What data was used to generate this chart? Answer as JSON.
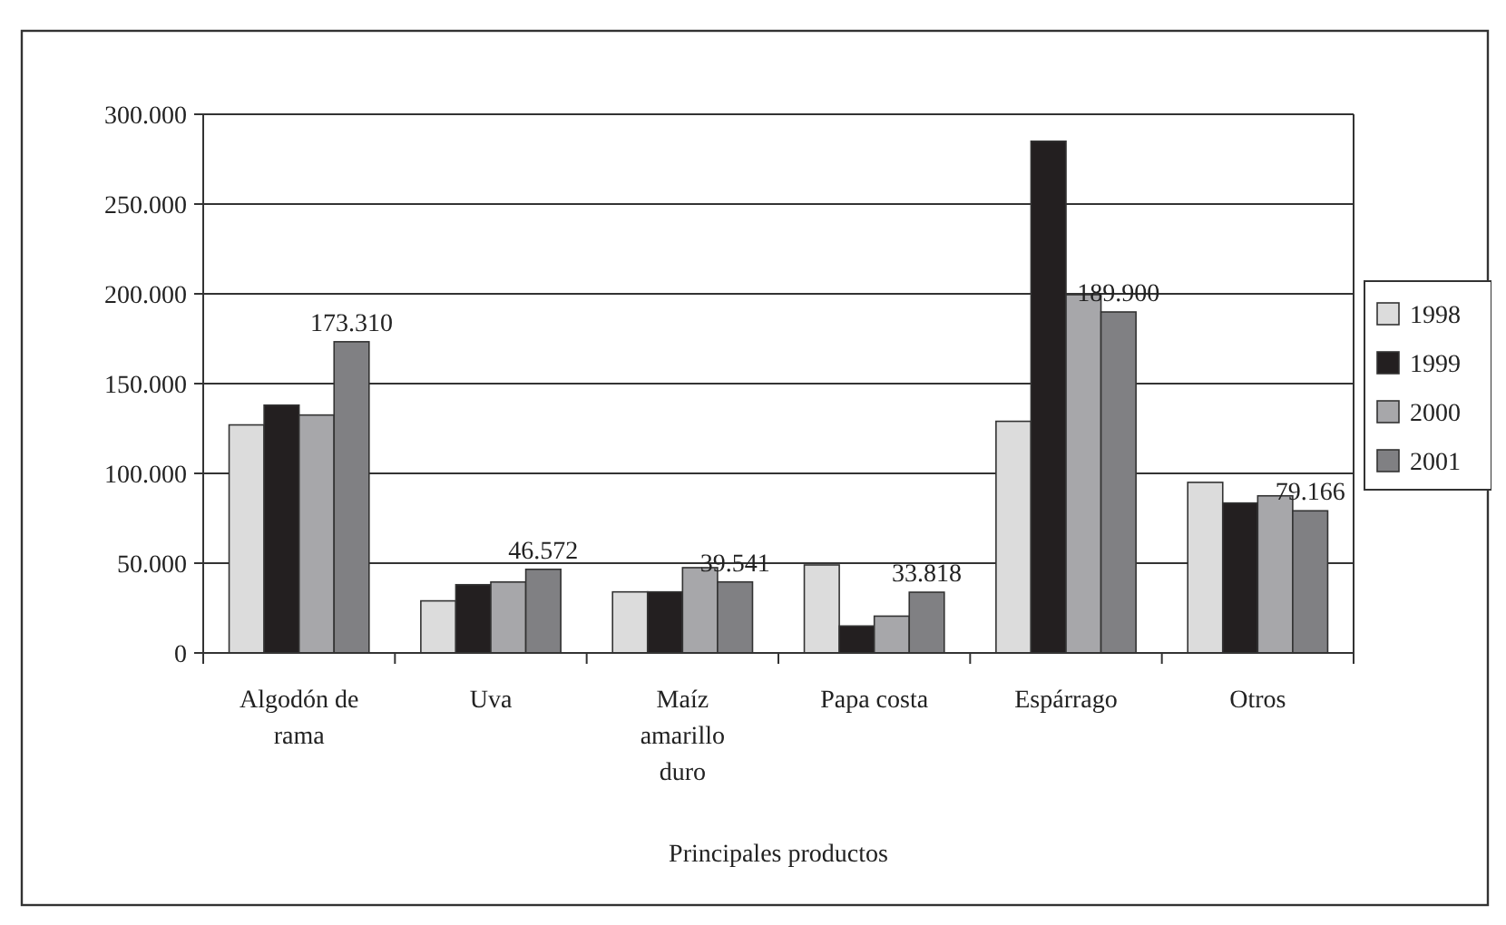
{
  "chart_data": {
    "type": "bar",
    "xlabel": "Principales productos",
    "categories": [
      "Algodón de rama",
      "Uva",
      "Maíz amarillo duro",
      "Papa costa",
      "Espárrago",
      "Otros"
    ],
    "series": [
      {
        "name": "1998",
        "color": "#dcdcdc",
        "values": [
          127000,
          29000,
          34000,
          49000,
          129000,
          95000
        ]
      },
      {
        "name": "1999",
        "color": "#231f20",
        "values": [
          138000,
          38000,
          34000,
          15000,
          285000,
          83500
        ]
      },
      {
        "name": "2000",
        "color": "#a7a7aa",
        "values": [
          132500,
          39500,
          47500,
          20500,
          199500,
          87500
        ]
      },
      {
        "name": "2001",
        "color": "#808083",
        "values": [
          173310,
          46572,
          39541,
          33818,
          189900,
          79166
        ],
        "value_labels": [
          "173.310",
          "46.572",
          "39.541",
          "33.818",
          "189.900",
          "79.166"
        ]
      }
    ],
    "ylim": [
      0,
      300000
    ],
    "yticks": [
      {
        "value": 0,
        "label": "0"
      },
      {
        "value": 50000,
        "label": "50.000"
      },
      {
        "value": 100000,
        "label": "100.000"
      },
      {
        "value": 150000,
        "label": "150.000"
      },
      {
        "value": 200000,
        "label": "200.000"
      },
      {
        "value": 250000,
        "label": "250.000"
      },
      {
        "value": 300000,
        "label": "300.000"
      }
    ],
    "grid": "y",
    "legend": "right"
  }
}
